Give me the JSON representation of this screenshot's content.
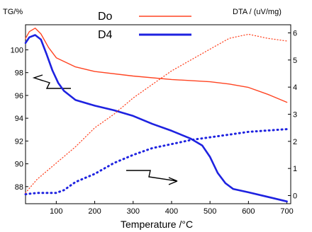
{
  "chart_data": {
    "type": "line",
    "y_left_label": "TG/%",
    "y_right_label": "DTA / (uV/mg)",
    "x_label": "Temperature /°C",
    "x_ticks": [
      "100",
      "200",
      "300",
      "400",
      "500",
      "600",
      "700"
    ],
    "y_left_ticks": [
      "88",
      "90",
      "92",
      "94",
      "96",
      "98",
      "100"
    ],
    "y_right_ticks": [
      "0",
      "1",
      "2",
      "3",
      "4",
      "5",
      "6"
    ],
    "xlim": [
      20,
      710
    ],
    "ylim_left": [
      86.5,
      102.2
    ],
    "ylim_right": [
      -0.3,
      6.3
    ],
    "grid": false,
    "legend_position": "top-center",
    "series": [
      {
        "name": "Do",
        "role": "TG",
        "axis": "left",
        "style": "solid",
        "color": "#ff4422",
        "x": [
          20,
          30,
          45,
          60,
          80,
          100,
          150,
          200,
          300,
          400,
          500,
          550,
          600,
          650,
          700
        ],
        "y": [
          101.0,
          101.6,
          101.9,
          101.4,
          100.2,
          99.3,
          98.5,
          98.1,
          97.7,
          97.4,
          97.2,
          97.0,
          96.7,
          96.1,
          95.4
        ]
      },
      {
        "name": "D4",
        "role": "TG",
        "axis": "left",
        "style": "solid",
        "color": "#1e22e0",
        "x": [
          20,
          30,
          45,
          60,
          75,
          90,
          105,
          120,
          150,
          200,
          250,
          300,
          350,
          400,
          450,
          480,
          500,
          520,
          540,
          560,
          600,
          650,
          700
        ],
        "y": [
          100.6,
          101.1,
          101.3,
          100.9,
          99.6,
          98.2,
          97.1,
          96.4,
          95.6,
          95.1,
          94.7,
          94.2,
          93.5,
          92.9,
          92.2,
          91.6,
          90.6,
          89.2,
          88.3,
          87.8,
          87.5,
          87.1,
          86.7
        ]
      },
      {
        "name": "Do",
        "role": "DTA",
        "axis": "right",
        "style": "dotted",
        "color": "#ff4422",
        "x": [
          20,
          50,
          100,
          150,
          200,
          250,
          300,
          350,
          400,
          450,
          500,
          550,
          600,
          650,
          700
        ],
        "y": [
          0.1,
          0.6,
          1.2,
          1.8,
          2.5,
          3.0,
          3.6,
          4.1,
          4.6,
          5.0,
          5.4,
          5.8,
          5.95,
          5.8,
          5.7
        ]
      },
      {
        "name": "D4",
        "role": "DTA",
        "axis": "right",
        "style": "dotted",
        "color": "#1e22e0",
        "x": [
          20,
          50,
          100,
          120,
          150,
          200,
          250,
          300,
          350,
          400,
          450,
          500,
          550,
          600,
          650,
          700
        ],
        "y": [
          0.05,
          0.1,
          0.1,
          0.2,
          0.5,
          0.8,
          1.2,
          1.5,
          1.75,
          1.9,
          2.05,
          2.15,
          2.25,
          2.35,
          2.4,
          2.45
        ]
      }
    ]
  }
}
